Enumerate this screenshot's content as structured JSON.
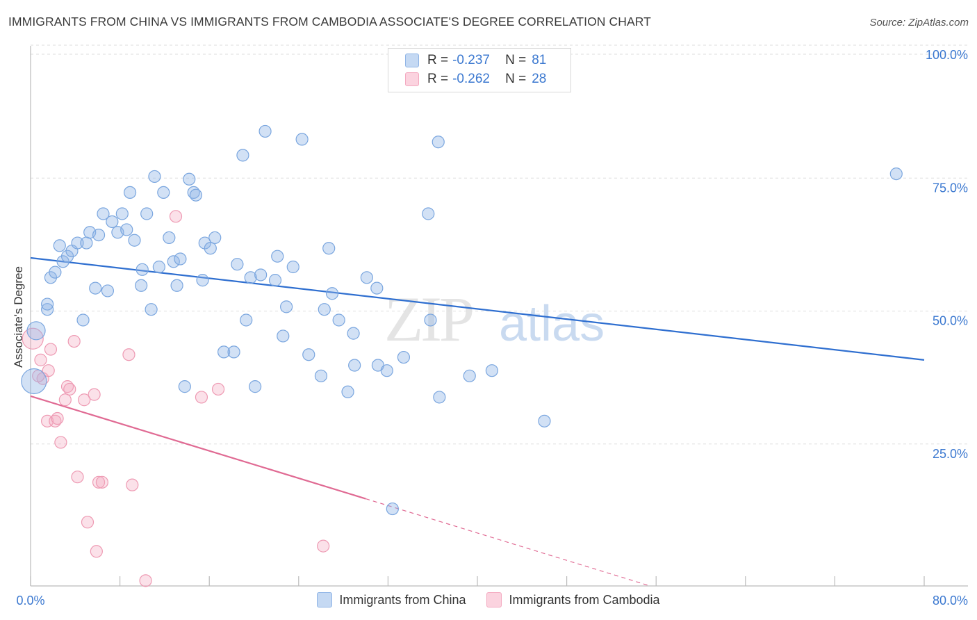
{
  "header": {
    "title": "IMMIGRANTS FROM CHINA VS IMMIGRANTS FROM CAMBODIA ASSOCIATE'S DEGREE CORRELATION CHART",
    "source": "Source: ZipAtlas.com"
  },
  "legend": {
    "rows": [
      {
        "r_label": "R =",
        "r_value": "-0.237",
        "n_label": "N =",
        "n_value": "81"
      },
      {
        "r_label": "R =",
        "r_value": "-0.262",
        "n_label": "N =",
        "n_value": "28"
      }
    ]
  },
  "watermark": {
    "zip": "ZIP",
    "atlas": "atlas"
  },
  "colors": {
    "china": "#8fb4e6",
    "china_line": "#2f6fd0",
    "cambodia": "#f4a9c0",
    "cambodia_line": "#e06a93",
    "axis_text": "#3b78d0",
    "grid": "#dddddd"
  },
  "chart_data": {
    "type": "scatter",
    "xlabel": "",
    "ylabel": "Associate's Degree",
    "xlim": [
      0,
      80
    ],
    "ylim": [
      0,
      100
    ],
    "x_tick_labels": [
      "0.0%",
      "80.0%"
    ],
    "y_tick_labels": [
      "100.0%",
      "75.0%",
      "50.0%",
      "25.0%"
    ],
    "y_ticks": [
      100,
      75,
      50,
      25
    ],
    "grid": true,
    "series": [
      {
        "name": "Immigrants from China",
        "color": "#8fb4e6",
        "trend": {
          "x0": 0,
          "y0": 61.7,
          "x1": 80,
          "y1": 42.5
        },
        "points": [
          [
            0.5,
            48.0
          ],
          [
            0.3,
            38.5
          ],
          [
            1.5,
            52.0
          ],
          [
            1.5,
            53.0
          ],
          [
            1.8,
            58.0
          ],
          [
            2.2,
            59.0
          ],
          [
            2.6,
            64.0
          ],
          [
            2.9,
            61.0
          ],
          [
            3.3,
            62.0
          ],
          [
            3.7,
            63.0
          ],
          [
            4.2,
            64.5
          ],
          [
            5.0,
            64.5
          ],
          [
            4.7,
            50.0
          ],
          [
            5.3,
            66.5
          ],
          [
            5.8,
            56.0
          ],
          [
            6.1,
            66.0
          ],
          [
            6.5,
            70.0
          ],
          [
            6.9,
            55.5
          ],
          [
            7.3,
            68.5
          ],
          [
            7.8,
            66.5
          ],
          [
            8.2,
            70.0
          ],
          [
            8.6,
            67.0
          ],
          [
            8.9,
            74.0
          ],
          [
            9.3,
            65.0
          ],
          [
            9.9,
            56.5
          ],
          [
            10.0,
            59.5
          ],
          [
            10.4,
            70.0
          ],
          [
            10.8,
            52.0
          ],
          [
            11.1,
            77.0
          ],
          [
            11.5,
            60.0
          ],
          [
            11.9,
            74.0
          ],
          [
            12.4,
            65.5
          ],
          [
            12.8,
            61.0
          ],
          [
            13.1,
            56.5
          ],
          [
            13.4,
            61.5
          ],
          [
            13.8,
            37.5
          ],
          [
            14.2,
            76.5
          ],
          [
            14.6,
            74.0
          ],
          [
            14.8,
            73.5
          ],
          [
            15.4,
            57.5
          ],
          [
            15.6,
            64.5
          ],
          [
            16.1,
            63.5
          ],
          [
            16.5,
            65.5
          ],
          [
            17.3,
            44.0
          ],
          [
            18.2,
            44.0
          ],
          [
            18.5,
            60.5
          ],
          [
            19.0,
            81.0
          ],
          [
            19.3,
            50.0
          ],
          [
            19.7,
            58.0
          ],
          [
            20.1,
            37.5
          ],
          [
            20.6,
            58.5
          ],
          [
            21.0,
            85.5
          ],
          [
            21.9,
            57.5
          ],
          [
            22.1,
            62.0
          ],
          [
            22.6,
            47.0
          ],
          [
            22.9,
            52.5
          ],
          [
            23.5,
            60.0
          ],
          [
            24.3,
            84.0
          ],
          [
            24.9,
            43.5
          ],
          [
            26.0,
            39.5
          ],
          [
            26.3,
            52.0
          ],
          [
            26.7,
            63.5
          ],
          [
            27.0,
            55.0
          ],
          [
            27.6,
            50.0
          ],
          [
            28.4,
            36.5
          ],
          [
            28.9,
            47.5
          ],
          [
            29.0,
            41.5
          ],
          [
            30.1,
            58.0
          ],
          [
            31.0,
            56.0
          ],
          [
            31.1,
            41.5
          ],
          [
            31.9,
            40.5
          ],
          [
            32.4,
            14.5
          ],
          [
            33.4,
            43.0
          ],
          [
            35.6,
            70.0
          ],
          [
            35.8,
            50.0
          ],
          [
            36.6,
            35.5
          ],
          [
            36.5,
            83.5
          ],
          [
            39.3,
            39.5
          ],
          [
            41.3,
            40.5
          ],
          [
            46.0,
            31.0
          ],
          [
            77.5,
            77.5
          ]
        ]
      },
      {
        "name": "Immigrants from Cambodia",
        "color": "#f4a9c0",
        "trend": {
          "x0": 0,
          "y0": 35.7,
          "x1": 30.0,
          "y1": 16.4
        },
        "trend_dashed": {
          "x0": 30.0,
          "y0": 16.4,
          "x1": 80,
          "y1": -15.8
        },
        "points": [
          [
            0.2,
            46.5
          ],
          [
            0.9,
            42.5
          ],
          [
            1.1,
            39.0
          ],
          [
            1.6,
            40.5
          ],
          [
            1.5,
            31.0
          ],
          [
            1.8,
            44.5
          ],
          [
            2.2,
            31.0
          ],
          [
            2.4,
            31.5
          ],
          [
            2.7,
            27.0
          ],
          [
            3.1,
            35.0
          ],
          [
            3.3,
            37.5
          ],
          [
            3.5,
            37.0
          ],
          [
            3.9,
            46.0
          ],
          [
            4.2,
            20.5
          ],
          [
            4.8,
            35.0
          ],
          [
            5.1,
            12.0
          ],
          [
            5.7,
            36.0
          ],
          [
            5.9,
            6.5
          ],
          [
            6.1,
            19.5
          ],
          [
            6.4,
            19.5
          ],
          [
            8.8,
            43.5
          ],
          [
            9.1,
            19.0
          ],
          [
            10.3,
            1.0
          ],
          [
            13.0,
            69.5
          ],
          [
            15.3,
            35.5
          ],
          [
            16.8,
            37.0
          ],
          [
            26.2,
            7.5
          ],
          [
            0.7,
            39.5
          ]
        ]
      }
    ]
  }
}
